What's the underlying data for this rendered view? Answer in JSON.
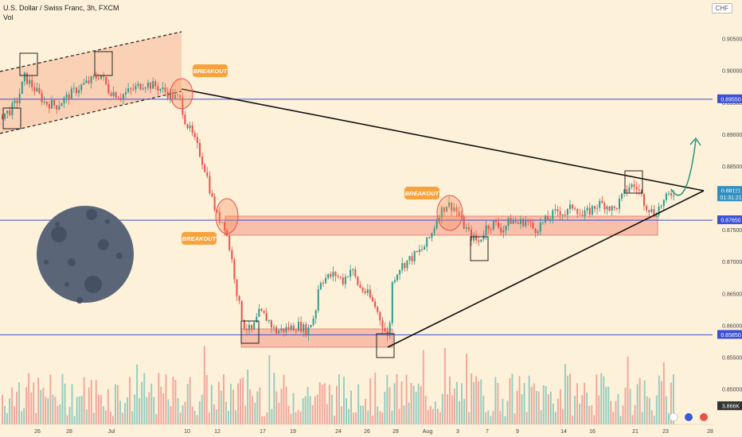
{
  "header": {
    "symbol_line": "U.S. Dollar / Swiss Franc, 3h, FXCM",
    "volume_label": "Vol",
    "currency": "CHF"
  },
  "colors": {
    "background": "#fdf1da",
    "up": "#2e9c8c",
    "down": "#e8504a",
    "vol_up": "#93cdbf",
    "vol_down": "#f2a59b",
    "level_line": "#3b4fd6",
    "zone_fill": "#f7b4a0",
    "zone_stroke": "#e5514a",
    "channel_fill": "#f9c6a8",
    "trendline": "#111111",
    "label_bg": "#f7a23c",
    "arrow": "#1f8f75",
    "moon": "#5a6678",
    "moon_crater": "#455062"
  },
  "chart_data": {
    "type": "candlestick",
    "title": "U.S. Dollar / Swiss Franc, 3h, FXCM",
    "y_axis": {
      "ticks": [
        "0.90500",
        "0.90000",
        "0.89500",
        "0.89000",
        "0.88500",
        "0.88000",
        "0.87500",
        "0.87000",
        "0.86500",
        "0.86000",
        "0.85500",
        "0.85000"
      ],
      "range": [
        0.8462,
        0.9092
      ]
    },
    "x_axis": {
      "ticks": [
        "26",
        "28",
        "Jul",
        "10",
        "12",
        "17",
        "19",
        "24",
        "26",
        "28",
        "Aug",
        "3",
        "7",
        "9",
        "14",
        "16",
        "21",
        "23",
        "28"
      ]
    },
    "price_labels": [
      {
        "value": "0.89550",
        "price": 0.8955
      },
      {
        "value": "0.88111",
        "price": 0.88111
      },
      {
        "value": "01:31:21",
        "price": 0.8801
      },
      {
        "value": "0.87650",
        "price": 0.8765
      },
      {
        "value": "0.85850",
        "price": 0.8585
      },
      {
        "value": "3.866K",
        "price": 0.8473
      }
    ],
    "horizontal_levels": [
      0.8955,
      0.8765,
      0.8585
    ],
    "price_path": [
      [
        0,
        0.893
      ],
      [
        10,
        0.8935
      ],
      [
        20,
        0.895
      ],
      [
        30,
        0.899
      ],
      [
        40,
        0.8975
      ],
      [
        55,
        0.895
      ],
      [
        70,
        0.8945
      ],
      [
        85,
        0.896
      ],
      [
        100,
        0.8975
      ],
      [
        115,
        0.8985
      ],
      [
        125,
        0.8995
      ],
      [
        135,
        0.897
      ],
      [
        150,
        0.896
      ],
      [
        165,
        0.897
      ],
      [
        180,
        0.898
      ],
      [
        195,
        0.8975
      ],
      [
        205,
        0.8968
      ],
      [
        215,
        0.896
      ],
      [
        225,
        0.8955
      ],
      [
        232,
        0.892
      ],
      [
        240,
        0.89
      ],
      [
        250,
        0.887
      ],
      [
        258,
        0.884
      ],
      [
        265,
        0.88
      ],
      [
        272,
        0.877
      ],
      [
        280,
        0.8762
      ],
      [
        286,
        0.873
      ],
      [
        292,
        0.869
      ],
      [
        298,
        0.864
      ],
      [
        305,
        0.86
      ],
      [
        315,
        0.859
      ],
      [
        325,
        0.862
      ],
      [
        335,
        0.861
      ],
      [
        345,
        0.859
      ],
      [
        360,
        0.8595
      ],
      [
        375,
        0.86
      ],
      [
        385,
        0.859
      ],
      [
        395,
        0.862
      ],
      [
        400,
        0.867
      ],
      [
        410,
        0.8675
      ],
      [
        420,
        0.868
      ],
      [
        430,
        0.867
      ],
      [
        440,
        0.869
      ],
      [
        450,
        0.866
      ],
      [
        460,
        0.865
      ],
      [
        470,
        0.863
      ],
      [
        480,
        0.86
      ],
      [
        487,
        0.8575
      ],
      [
        492,
        0.867
      ],
      [
        500,
        0.869
      ],
      [
        510,
        0.87
      ],
      [
        520,
        0.871
      ],
      [
        530,
        0.872
      ],
      [
        540,
        0.874
      ],
      [
        550,
        0.8775
      ],
      [
        560,
        0.879
      ],
      [
        570,
        0.8785
      ],
      [
        580,
        0.876
      ],
      [
        590,
        0.874
      ],
      [
        600,
        0.873
      ],
      [
        610,
        0.8755
      ],
      [
        620,
        0.876
      ],
      [
        630,
        0.875
      ],
      [
        640,
        0.8765
      ],
      [
        650,
        0.876
      ],
      [
        660,
        0.8765
      ],
      [
        670,
        0.875
      ],
      [
        680,
        0.876
      ],
      [
        690,
        0.877
      ],
      [
        700,
        0.878
      ],
      [
        710,
        0.8775
      ],
      [
        720,
        0.879
      ],
      [
        730,
        0.877
      ],
      [
        740,
        0.878
      ],
      [
        750,
        0.879
      ],
      [
        760,
        0.879
      ],
      [
        770,
        0.878
      ],
      [
        780,
        0.88
      ],
      [
        790,
        0.882
      ],
      [
        800,
        0.8815
      ],
      [
        810,
        0.879
      ],
      [
        820,
        0.8775
      ],
      [
        830,
        0.879
      ],
      [
        840,
        0.8805
      ],
      [
        846,
        0.88111
      ]
    ]
  },
  "annotations": {
    "breakout_1": "BREAKOUT",
    "breakout_2": "BREAKOUT",
    "breakout_3": "BREAKOUT"
  },
  "tools": {
    "lightning_icon": "lightning-icon",
    "flag_us": "us-flag-icon",
    "flag_ch": "ch-flag-icon"
  }
}
